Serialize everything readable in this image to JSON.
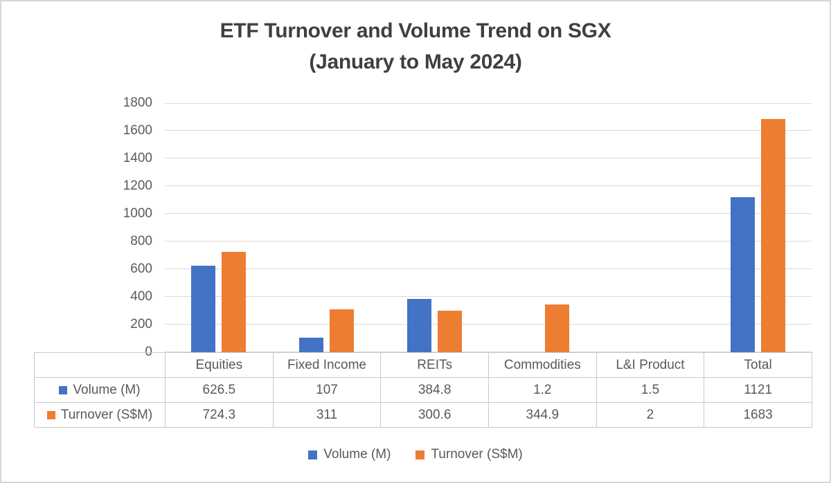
{
  "title": {
    "line1": "ETF Turnover and Volume Trend on SGX",
    "line2": "(January to May 2024)"
  },
  "chart_data": {
    "type": "bar",
    "title": "ETF Turnover and Volume Trend on SGX (January to May 2024)",
    "categories": [
      "Equities",
      "Fixed Income",
      "REITs",
      "Commodities",
      "L&I Product",
      "Total"
    ],
    "series": [
      {
        "name": "Volume (M)",
        "color": "#4472C4",
        "values": [
          626.5,
          107,
          384.8,
          1.2,
          1.5,
          1121
        ]
      },
      {
        "name": "Turnover (S$M)",
        "color": "#ED7D31",
        "values": [
          724.3,
          311,
          300.6,
          344.9,
          2,
          1683
        ]
      }
    ],
    "ylim": [
      0,
      1800
    ],
    "ytick_step": 200,
    "grid": true,
    "legend_position": "bottom",
    "data_table": true
  },
  "colors": {
    "series_blue": "#4472C4",
    "series_orange": "#ED7D31",
    "gridline": "#D9D9D9",
    "table_border": "#C9C9C9",
    "axis_text": "#595959",
    "title_text": "#3F3F3F"
  }
}
